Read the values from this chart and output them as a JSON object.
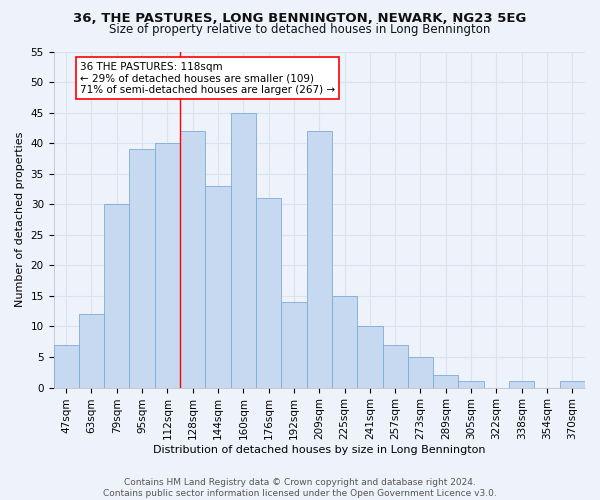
{
  "title": "36, THE PASTURES, LONG BENNINGTON, NEWARK, NG23 5EG",
  "subtitle": "Size of property relative to detached houses in Long Bennington",
  "xlabel": "Distribution of detached houses by size in Long Bennington",
  "ylabel": "Number of detached properties",
  "bar_color": "#c6d9f0",
  "bar_edge_color": "#7aadd6",
  "categories": [
    "47sqm",
    "63sqm",
    "79sqm",
    "95sqm",
    "112sqm",
    "128sqm",
    "144sqm",
    "160sqm",
    "176sqm",
    "192sqm",
    "209sqm",
    "225sqm",
    "241sqm",
    "257sqm",
    "273sqm",
    "289sqm",
    "305sqm",
    "322sqm",
    "338sqm",
    "354sqm",
    "370sqm"
  ],
  "values": [
    7,
    12,
    30,
    39,
    40,
    42,
    33,
    45,
    31,
    14,
    42,
    15,
    10,
    7,
    5,
    2,
    1,
    0,
    1,
    0,
    1
  ],
  "ylim": [
    0,
    55
  ],
  "yticks": [
    0,
    5,
    10,
    15,
    20,
    25,
    30,
    35,
    40,
    45,
    50,
    55
  ],
  "vline_x_index": 4.5,
  "property_label": "36 THE PASTURES: 118sqm",
  "annotation_line1": "← 29% of detached houses are smaller (109)",
  "annotation_line2": "71% of semi-detached houses are larger (267) →",
  "footer1": "Contains HM Land Registry data © Crown copyright and database right 2024.",
  "footer2": "Contains public sector information licensed under the Open Government Licence v3.0.",
  "background_color": "#eef2fa",
  "grid_color": "#d8e4f0",
  "title_fontsize": 9.5,
  "subtitle_fontsize": 8.5,
  "xlabel_fontsize": 8,
  "ylabel_fontsize": 8,
  "tick_fontsize": 7.5,
  "footer_fontsize": 6.5,
  "annot_fontsize": 7.5
}
